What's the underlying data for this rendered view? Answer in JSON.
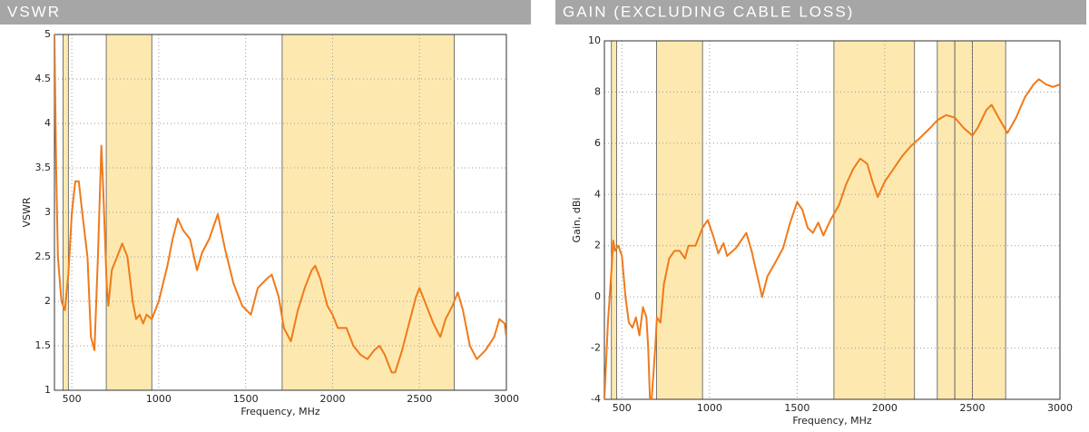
{
  "chart_data": [
    {
      "type": "line",
      "title": "VSWR",
      "x_label": "Frequency, MHz",
      "y_label": "VSWR",
      "xlim": [
        400,
        3000
      ],
      "xticks": [
        500,
        1000,
        1500,
        2000,
        2500,
        3000
      ],
      "ylim": [
        1,
        5
      ],
      "yticks": [
        1,
        1.5,
        2,
        2.5,
        3,
        3.5,
        4,
        4.5,
        5
      ],
      "grid": true,
      "color": "#f07a1a",
      "band_color": "#fde9b0",
      "bands": [
        [
          450,
          480
        ],
        [
          698,
          960
        ],
        [
          1710,
          2700
        ]
      ],
      "x": [
        400,
        410,
        420,
        440,
        450,
        460,
        480,
        500,
        520,
        540,
        560,
        590,
        610,
        630,
        650,
        670,
        680,
        700,
        710,
        730,
        760,
        790,
        820,
        850,
        870,
        890,
        910,
        930,
        960,
        1000,
        1050,
        1080,
        1110,
        1140,
        1180,
        1220,
        1250,
        1290,
        1340,
        1380,
        1430,
        1480,
        1530,
        1570,
        1620,
        1650,
        1690,
        1720,
        1760,
        1800,
        1840,
        1880,
        1900,
        1930,
        1970,
        2000,
        2030,
        2080,
        2120,
        2160,
        2200,
        2240,
        2270,
        2300,
        2340,
        2360,
        2400,
        2440,
        2480,
        2500,
        2540,
        2580,
        2620,
        2650,
        2690,
        2720,
        2750,
        2790,
        2830,
        2880,
        2930,
        2960,
        2990,
        3000
      ],
      "values": [
        5,
        3.5,
        2.5,
        2.0,
        1.95,
        1.9,
        2.3,
        3.0,
        3.35,
        3.35,
        3.0,
        2.5,
        1.6,
        1.45,
        2.5,
        3.75,
        3.3,
        2.2,
        1.95,
        2.35,
        2.5,
        2.65,
        2.5,
        2.0,
        1.8,
        1.85,
        1.75,
        1.85,
        1.8,
        2.0,
        2.4,
        2.7,
        2.93,
        2.8,
        2.7,
        2.35,
        2.55,
        2.7,
        2.98,
        2.6,
        2.2,
        1.95,
        1.85,
        2.15,
        2.25,
        2.3,
        2.05,
        1.7,
        1.55,
        1.9,
        2.15,
        2.35,
        2.4,
        2.25,
        1.95,
        1.85,
        1.7,
        1.7,
        1.5,
        1.4,
        1.35,
        1.45,
        1.5,
        1.4,
        1.2,
        1.2,
        1.45,
        1.75,
        2.05,
        2.15,
        1.95,
        1.75,
        1.6,
        1.8,
        1.95,
        2.1,
        1.9,
        1.5,
        1.35,
        1.45,
        1.6,
        1.8,
        1.75,
        1.6
      ]
    },
    {
      "type": "line",
      "title": "GAIN (EXCLUDING CABLE LOSS)",
      "x_label": "Frequency, MHz",
      "y_label": "Gain, dBi",
      "xlim": [
        400,
        3000
      ],
      "xticks": [
        500,
        1000,
        1500,
        2000,
        2500,
        3000
      ],
      "ylim": [
        -4,
        10
      ],
      "yticks": [
        -4,
        -2,
        0,
        2,
        4,
        6,
        8,
        10
      ],
      "grid": true,
      "color": "#f07a1a",
      "band_color": "#fde9b0",
      "bands": [
        [
          440,
          470
        ],
        [
          698,
          960
        ],
        [
          1710,
          2170
        ],
        [
          2300,
          2400
        ],
        [
          2400,
          2500
        ],
        [
          2500,
          2690
        ]
      ],
      "x": [
        400,
        420,
        440,
        450,
        460,
        480,
        500,
        520,
        540,
        560,
        580,
        600,
        620,
        640,
        650,
        660,
        670,
        690,
        700,
        720,
        740,
        770,
        800,
        830,
        860,
        880,
        920,
        960,
        990,
        1020,
        1050,
        1080,
        1100,
        1150,
        1190,
        1210,
        1240,
        1270,
        1300,
        1330,
        1380,
        1420,
        1460,
        1500,
        1530,
        1560,
        1590,
        1620,
        1650,
        1690,
        1740,
        1780,
        1820,
        1860,
        1900,
        1930,
        1960,
        2000,
        2050,
        2100,
        2150,
        2200,
        2230,
        2260,
        2300,
        2350,
        2400,
        2450,
        2500,
        2530,
        2580,
        2610,
        2650,
        2700,
        2750,
        2800,
        2850,
        2880,
        2920,
        2960,
        3000
      ],
      "values": [
        -4,
        -1,
        1,
        2.2,
        1.8,
        2.0,
        1.6,
        0.0,
        -1.0,
        -1.2,
        -0.8,
        -1.5,
        -0.4,
        -0.8,
        -2,
        -4,
        -4,
        -2,
        -0.8,
        -1.0,
        0.5,
        1.5,
        1.8,
        1.8,
        1.5,
        2.0,
        2.0,
        2.7,
        3.0,
        2.4,
        1.7,
        2.1,
        1.6,
        1.9,
        2.3,
        2.5,
        1.8,
        0.9,
        0.0,
        0.8,
        1.4,
        1.9,
        2.9,
        3.7,
        3.4,
        2.7,
        2.5,
        2.9,
        2.4,
        3.0,
        3.6,
        4.4,
        5.0,
        5.4,
        5.2,
        4.5,
        3.9,
        4.5,
        5.0,
        5.5,
        5.9,
        6.2,
        6.4,
        6.6,
        6.9,
        7.1,
        7.0,
        6.6,
        6.3,
        6.6,
        7.3,
        7.5,
        7.0,
        6.4,
        7.0,
        7.8,
        8.3,
        8.5,
        8.3,
        8.2,
        8.3
      ]
    }
  ]
}
